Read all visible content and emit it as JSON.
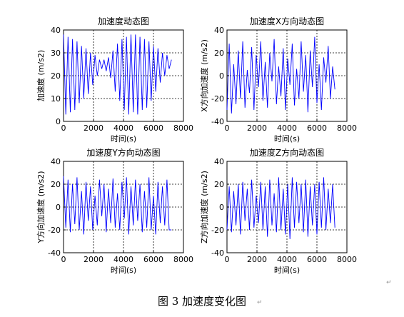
{
  "caption": "图 3  加速度变化图",
  "chart_data": [
    {
      "type": "line",
      "title": "加速度动态图",
      "xlabel": "时间(s)",
      "ylabel": "加速度 (m/s2)",
      "xlim": [
        0,
        8000
      ],
      "ylim": [
        0,
        40
      ],
      "xticks": [
        0,
        2000,
        4000,
        6000,
        8000
      ],
      "yticks": [
        0,
        10,
        20,
        30,
        40
      ],
      "grid": true,
      "series": [
        {
          "x": [
            0,
            150,
            300,
            450,
            600,
            750,
            900,
            1050,
            1200,
            1350,
            1500,
            1650,
            1800,
            1950,
            2100,
            2250,
            2400,
            2550,
            2700,
            2850,
            3000,
            3150,
            3300,
            3450,
            3600,
            3750,
            3900,
            4050,
            4200,
            4350,
            4500,
            4650,
            4800,
            4950,
            5100,
            5250,
            5400,
            5550,
            5700,
            5850,
            6000,
            6150,
            6300,
            6450,
            6600,
            6750,
            6900,
            7050,
            7200
          ],
          "y": [
            38,
            3,
            37,
            4,
            36,
            5,
            35,
            8,
            33,
            10,
            32,
            12,
            30,
            16,
            29,
            20,
            27,
            23,
            27,
            22,
            28,
            19,
            31,
            13,
            34,
            9,
            36,
            5,
            37,
            3,
            38,
            4,
            38,
            3,
            37,
            5,
            36,
            6,
            35,
            9,
            33,
            13,
            32,
            17,
            30,
            20,
            29,
            23,
            27
          ],
          "color": "#0000ff"
        }
      ]
    },
    {
      "type": "line",
      "title": "加速度X方向动态图",
      "xlabel": "时间(s)",
      "ylabel": "X方向加速度 (m/s2)",
      "xlim": [
        0,
        8000
      ],
      "ylim": [
        -40,
        40
      ],
      "xticks": [
        0,
        2000,
        4000,
        6000,
        8000
      ],
      "yticks": [
        -40,
        -20,
        0,
        20,
        40
      ],
      "grid": true,
      "series": [
        {
          "x": [
            0,
            150,
            300,
            450,
            600,
            750,
            900,
            1050,
            1200,
            1350,
            1500,
            1650,
            1800,
            1950,
            2100,
            2250,
            2400,
            2550,
            2700,
            2850,
            3000,
            3150,
            3300,
            3450,
            3600,
            3750,
            3900,
            4050,
            4200,
            4350,
            4500,
            4650,
            4800,
            4950,
            5100,
            5250,
            5400,
            5550,
            5700,
            5850,
            6000,
            6150,
            6300,
            6450,
            6600,
            6750,
            6900,
            7050,
            7200
          ],
          "y": [
            -30,
            28,
            -33,
            10,
            -25,
            22,
            -20,
            30,
            -28,
            5,
            -15,
            25,
            -30,
            18,
            -10,
            30,
            -22,
            12,
            -28,
            20,
            -5,
            32,
            -25,
            8,
            -18,
            24,
            -30,
            15,
            -8,
            28,
            -26,
            6,
            -20,
            30,
            -14,
            18,
            -32,
            22,
            -10,
            34,
            -24,
            10,
            -30,
            16,
            -6,
            26,
            -20,
            8,
            -12
          ],
          "color": "#0000ff"
        }
      ]
    },
    {
      "type": "line",
      "title": "加速度Y方向动态图",
      "xlabel": "时间(s)",
      "ylabel": "Y方向加速度 (m/s2)",
      "xlim": [
        0,
        8000
      ],
      "ylim": [
        -40,
        40
      ],
      "xticks": [
        0,
        2000,
        4000,
        6000,
        8000
      ],
      "yticks": [
        -40,
        -20,
        0,
        20,
        40
      ],
      "grid": true,
      "series": [
        {
          "x": [
            0,
            150,
            300,
            450,
            600,
            750,
            900,
            1050,
            1200,
            1350,
            1500,
            1650,
            1800,
            1950,
            2100,
            2250,
            2400,
            2550,
            2700,
            2850,
            3000,
            3150,
            3300,
            3450,
            3600,
            3750,
            3900,
            4050,
            4200,
            4350,
            4500,
            4650,
            4800,
            4950,
            5100,
            5250,
            5400,
            5550,
            5700,
            5850,
            6000,
            6150,
            6300,
            6450,
            6600,
            6750,
            6900,
            7050,
            7200
          ],
          "y": [
            27,
            -18,
            24,
            -22,
            20,
            -15,
            26,
            -20,
            14,
            -24,
            22,
            -12,
            18,
            -20,
            10,
            -16,
            24,
            -8,
            20,
            -22,
            16,
            -14,
            25,
            -18,
            12,
            -20,
            22,
            -10,
            26,
            -24,
            18,
            -16,
            24,
            -12,
            20,
            -22,
            14,
            -18,
            26,
            -20,
            10,
            -24,
            22,
            -14,
            18,
            -16,
            24,
            -20,
            -20
          ],
          "color": "#0000ff"
        }
      ]
    },
    {
      "type": "line",
      "title": "加速度Z方向动态图",
      "xlabel": "时间(s)",
      "ylabel": "Z方向加速度 (m/s2)",
      "xlim": [
        0,
        8000
      ],
      "ylim": [
        -40,
        40
      ],
      "xticks": [
        0,
        2000,
        4000,
        6000,
        8000
      ],
      "yticks": [
        -40,
        -20,
        0,
        20,
        40
      ],
      "grid": true,
      "series": [
        {
          "x": [
            0,
            150,
            300,
            450,
            600,
            750,
            900,
            1050,
            1200,
            1350,
            1500,
            1650,
            1800,
            1950,
            2100,
            2250,
            2400,
            2550,
            2700,
            2850,
            3000,
            3150,
            3300,
            3450,
            3600,
            3750,
            3900,
            4050,
            4200,
            4350,
            4500,
            4650,
            4800,
            4950,
            5100,
            5250,
            5400,
            5550,
            5700,
            5850,
            6000,
            6150,
            6300,
            6450,
            6600,
            6750,
            6900,
            7050,
            7200
          ],
          "y": [
            -20,
            18,
            -22,
            14,
            -16,
            20,
            -24,
            22,
            -12,
            16,
            -20,
            24,
            -18,
            10,
            -14,
            22,
            -20,
            18,
            -26,
            24,
            -16,
            12,
            -22,
            26,
            -20,
            16,
            -24,
            20,
            -28,
            26,
            -18,
            22,
            -14,
            20,
            -22,
            24,
            -26,
            18,
            -16,
            20,
            -24,
            22,
            -18,
            26,
            -20,
            16,
            -14,
            20,
            -18
          ],
          "color": "#0000ff"
        }
      ]
    }
  ]
}
